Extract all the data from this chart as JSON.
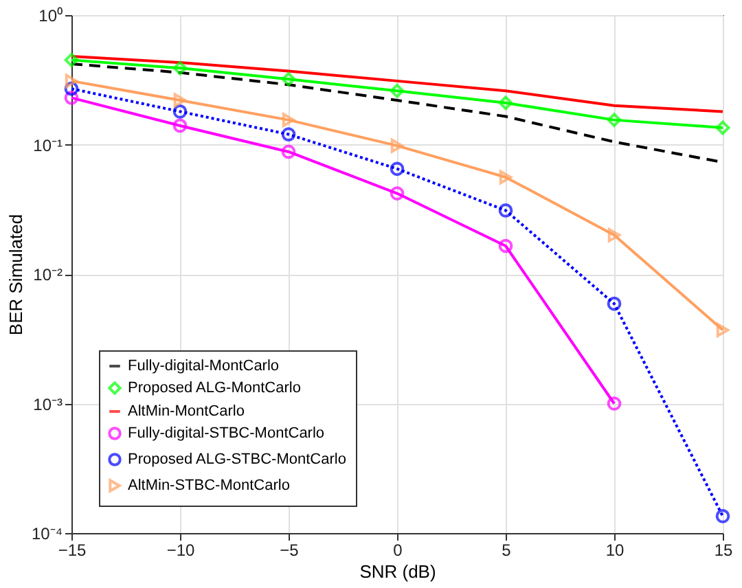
{
  "chart_data": {
    "type": "line",
    "xlabel": "SNR (dB)",
    "ylabel": "BER Simulated",
    "x": [
      -15,
      -10,
      -5,
      0,
      5,
      10,
      15
    ],
    "series": [
      {
        "name": "Fully-digital-MontCarlo",
        "color": "#000000",
        "line_style": "dashed",
        "marker": "none",
        "values": [
          0.42,
          0.36,
          0.29,
          0.22,
          0.165,
          0.105,
          0.073
        ]
      },
      {
        "name": "Proposed ALG-MontCarlo",
        "color": "#00ff00",
        "line_style": "solid",
        "marker": "diamond",
        "values": [
          0.45,
          0.39,
          0.32,
          0.26,
          0.21,
          0.155,
          0.135
        ]
      },
      {
        "name": "AltMin-MontCarlo",
        "color": "#ff0000",
        "line_style": "solid",
        "marker": "none",
        "values": [
          0.48,
          0.43,
          0.37,
          0.31,
          0.26,
          0.2,
          0.18
        ]
      },
      {
        "name": "Fully-digital-STBC-MontCarlo",
        "color": "#ff00ff",
        "line_style": "solid",
        "marker": "circle",
        "values": [
          0.23,
          0.14,
          0.088,
          0.042,
          0.0165,
          0.001,
          null
        ]
      },
      {
        "name": "Proposed ALG-STBC-MontCarlo",
        "color": "#0000ff",
        "line_style": "dotted",
        "marker": "circle",
        "values": [
          0.27,
          0.18,
          0.12,
          0.065,
          0.031,
          0.0059,
          0.000135
        ]
      },
      {
        "name": "AltMin-STBC-MontCarlo",
        "color": "#ffa060",
        "line_style": "solid",
        "marker": "triangle-right",
        "values": [
          0.31,
          0.22,
          0.155,
          0.098,
          0.056,
          0.02,
          0.0037
        ]
      }
    ],
    "log": "y",
    "xlim": [
      -15,
      15
    ],
    "xticks": [
      -15,
      -10,
      -5,
      0,
      5,
      10,
      15
    ],
    "ylim": [
      0.0001,
      1
    ],
    "yticks": [
      {
        "value": 1,
        "label": "10⁰"
      },
      {
        "value": 0.1,
        "label": "10⁻¹"
      },
      {
        "value": 0.01,
        "label": "10⁻²"
      },
      {
        "value": 0.001,
        "label": "10⁻³"
      },
      {
        "value": 0.0001,
        "label": "10⁻⁴"
      }
    ],
    "grid": true,
    "legend": "bottom left"
  }
}
